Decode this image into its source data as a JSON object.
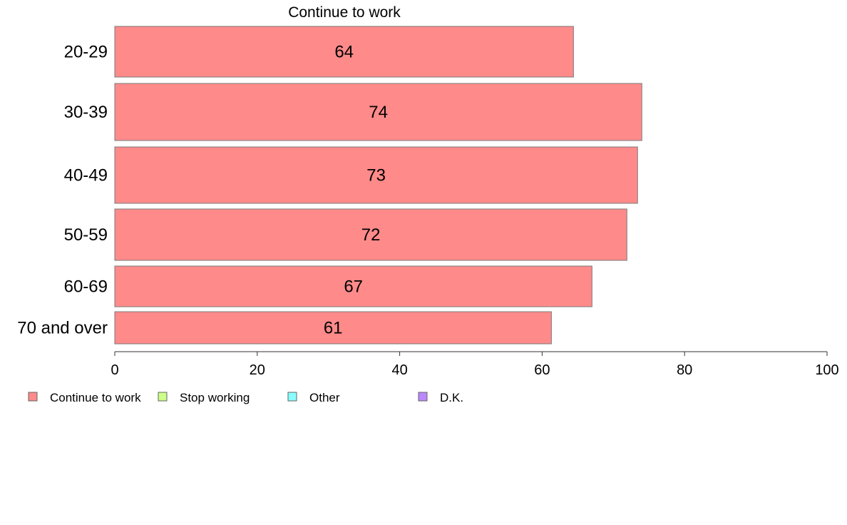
{
  "chart_data": {
    "type": "bar",
    "orientation": "horizontal",
    "title": "Continue to work",
    "categories": [
      "20-29",
      "30-39",
      "40-49",
      "50-59",
      "60-69",
      "70 and over"
    ],
    "series": [
      {
        "name": "Continue to work",
        "values": [
          64.4,
          74,
          73.4,
          71.9,
          67,
          61.3
        ],
        "labels": [
          "64",
          "74",
          "73",
          "72",
          "67",
          "61"
        ],
        "color": "#ff8a8a"
      }
    ],
    "xlim": [
      0,
      100
    ],
    "xticks": [
      "0",
      "20",
      "40",
      "60",
      "80",
      "100"
    ],
    "grid": false,
    "legend": {
      "position": "bottom-left",
      "items": [
        {
          "name": "Continue to work",
          "color": "#ff8a8a"
        },
        {
          "name": "Stop working",
          "color": "#ccff88"
        },
        {
          "name": "Other",
          "color": "#88ffff"
        },
        {
          "name": "D.K.",
          "color": "#bb88ff"
        }
      ]
    }
  }
}
